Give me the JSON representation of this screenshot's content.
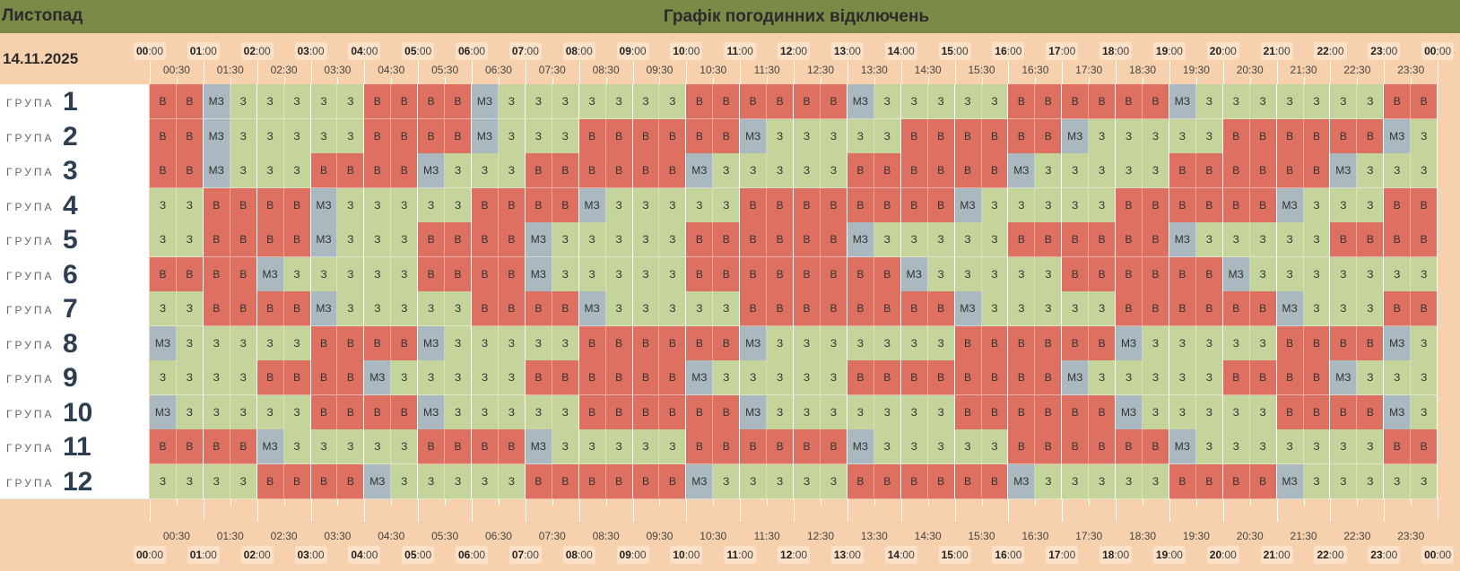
{
  "header": {
    "month": "Листопад",
    "title": "Графік погодинних відключень"
  },
  "date": "14.11.2025",
  "hour_labels": [
    {
      "h": "00",
      "m": ":00"
    },
    {
      "h": "01",
      "m": ":00"
    },
    {
      "h": "02",
      "m": ":00"
    },
    {
      "h": "03",
      "m": ":00"
    },
    {
      "h": "04",
      "m": ":00"
    },
    {
      "h": "05",
      "m": ":00"
    },
    {
      "h": "06",
      "m": ":00"
    },
    {
      "h": "07",
      "m": ":00"
    },
    {
      "h": "08",
      "m": ":00"
    },
    {
      "h": "09",
      "m": ":00"
    },
    {
      "h": "10",
      "m": ":00"
    },
    {
      "h": "11",
      "m": ":00"
    },
    {
      "h": "12",
      "m": ":00"
    },
    {
      "h": "13",
      "m": ":00"
    },
    {
      "h": "14",
      "m": ":00"
    },
    {
      "h": "15",
      "m": ":00"
    },
    {
      "h": "16",
      "m": ":00"
    },
    {
      "h": "17",
      "m": ":00"
    },
    {
      "h": "18",
      "m": ":00"
    },
    {
      "h": "19",
      "m": ":00"
    },
    {
      "h": "20",
      "m": ":00"
    },
    {
      "h": "21",
      "m": ":00"
    },
    {
      "h": "22",
      "m": ":00"
    },
    {
      "h": "23",
      "m": ":00"
    },
    {
      "h": "00",
      "m": ":00"
    }
  ],
  "half_labels": [
    "00:30",
    "01:30",
    "02:30",
    "03:30",
    "04:30",
    "05:30",
    "06:30",
    "07:30",
    "08:30",
    "09:30",
    "10:30",
    "11:30",
    "12:30",
    "13:30",
    "14:30",
    "15:30",
    "16:30",
    "17:30",
    "18:30",
    "19:30",
    "20:30",
    "21:30",
    "22:30",
    "23:30"
  ],
  "group_word": "ГРУПА",
  "status_text": {
    "B": "В",
    "Z": "З",
    "MZ": "МЗ"
  },
  "status_colors": {
    "B": "#dd7060",
    "Z": "#c5d49a",
    "MZ": "#aab8c0"
  },
  "groups": [
    {
      "number": "1",
      "slots": [
        "B",
        "B",
        "MZ",
        "Z",
        "Z",
        "Z",
        "Z",
        "Z",
        "B",
        "B",
        "B",
        "B",
        "MZ",
        "Z",
        "Z",
        "Z",
        "Z",
        "Z",
        "Z",
        "Z",
        "B",
        "B",
        "B",
        "B",
        "B",
        "B",
        "MZ",
        "Z",
        "Z",
        "Z",
        "Z",
        "Z",
        "B",
        "B",
        "B",
        "B",
        "B",
        "B",
        "MZ",
        "Z",
        "Z",
        "Z",
        "Z",
        "Z",
        "Z",
        "Z",
        "B",
        "B"
      ]
    },
    {
      "number": "2",
      "slots": [
        "B",
        "B",
        "MZ",
        "Z",
        "Z",
        "Z",
        "Z",
        "Z",
        "B",
        "B",
        "B",
        "B",
        "MZ",
        "Z",
        "Z",
        "Z",
        "B",
        "B",
        "B",
        "B",
        "B",
        "B",
        "MZ",
        "Z",
        "Z",
        "Z",
        "Z",
        "Z",
        "B",
        "B",
        "B",
        "B",
        "B",
        "B",
        "MZ",
        "Z",
        "Z",
        "Z",
        "Z",
        "Z",
        "B",
        "B",
        "B",
        "B",
        "B",
        "B",
        "MZ",
        "Z"
      ]
    },
    {
      "number": "3",
      "slots": [
        "B",
        "B",
        "MZ",
        "Z",
        "Z",
        "Z",
        "B",
        "B",
        "B",
        "B",
        "MZ",
        "Z",
        "Z",
        "Z",
        "B",
        "B",
        "B",
        "B",
        "B",
        "B",
        "MZ",
        "Z",
        "Z",
        "Z",
        "Z",
        "Z",
        "B",
        "B",
        "B",
        "B",
        "B",
        "B",
        "MZ",
        "Z",
        "Z",
        "Z",
        "Z",
        "Z",
        "B",
        "B",
        "B",
        "B",
        "B",
        "B",
        "MZ",
        "Z",
        "Z",
        "Z"
      ]
    },
    {
      "number": "4",
      "slots": [
        "Z",
        "Z",
        "B",
        "B",
        "B",
        "B",
        "MZ",
        "Z",
        "Z",
        "Z",
        "Z",
        "Z",
        "B",
        "B",
        "B",
        "B",
        "MZ",
        "Z",
        "Z",
        "Z",
        "Z",
        "Z",
        "B",
        "B",
        "B",
        "B",
        "B",
        "B",
        "B",
        "B",
        "MZ",
        "Z",
        "Z",
        "Z",
        "Z",
        "Z",
        "B",
        "B",
        "B",
        "B",
        "B",
        "B",
        "MZ",
        "Z",
        "Z",
        "Z",
        "B",
        "B"
      ]
    },
    {
      "number": "5",
      "slots": [
        "Z",
        "Z",
        "B",
        "B",
        "B",
        "B",
        "MZ",
        "Z",
        "Z",
        "Z",
        "B",
        "B",
        "B",
        "B",
        "MZ",
        "Z",
        "Z",
        "Z",
        "Z",
        "Z",
        "B",
        "B",
        "B",
        "B",
        "B",
        "B",
        "MZ",
        "Z",
        "Z",
        "Z",
        "Z",
        "Z",
        "B",
        "B",
        "B",
        "B",
        "B",
        "B",
        "MZ",
        "Z",
        "Z",
        "Z",
        "Z",
        "Z",
        "B",
        "B",
        "B",
        "B"
      ]
    },
    {
      "number": "6",
      "slots": [
        "B",
        "B",
        "B",
        "B",
        "MZ",
        "Z",
        "Z",
        "Z",
        "Z",
        "Z",
        "B",
        "B",
        "B",
        "B",
        "MZ",
        "Z",
        "Z",
        "Z",
        "Z",
        "Z",
        "B",
        "B",
        "B",
        "B",
        "B",
        "B",
        "B",
        "B",
        "MZ",
        "Z",
        "Z",
        "Z",
        "Z",
        "Z",
        "B",
        "B",
        "B",
        "B",
        "B",
        "B",
        "MZ",
        "Z",
        "Z",
        "Z",
        "Z",
        "Z",
        "Z",
        "Z"
      ]
    },
    {
      "number": "7",
      "slots": [
        "Z",
        "Z",
        "B",
        "B",
        "B",
        "B",
        "MZ",
        "Z",
        "Z",
        "Z",
        "Z",
        "Z",
        "B",
        "B",
        "B",
        "B",
        "MZ",
        "Z",
        "Z",
        "Z",
        "Z",
        "Z",
        "B",
        "B",
        "B",
        "B",
        "B",
        "B",
        "B",
        "B",
        "MZ",
        "Z",
        "Z",
        "Z",
        "Z",
        "Z",
        "B",
        "B",
        "B",
        "B",
        "B",
        "B",
        "MZ",
        "Z",
        "Z",
        "Z",
        "B",
        "B"
      ]
    },
    {
      "number": "8",
      "slots": [
        "MZ",
        "Z",
        "Z",
        "Z",
        "Z",
        "Z",
        "B",
        "B",
        "B",
        "B",
        "MZ",
        "Z",
        "Z",
        "Z",
        "Z",
        "Z",
        "B",
        "B",
        "B",
        "B",
        "B",
        "B",
        "MZ",
        "Z",
        "Z",
        "Z",
        "Z",
        "Z",
        "Z",
        "Z",
        "B",
        "B",
        "B",
        "B",
        "B",
        "B",
        "MZ",
        "Z",
        "Z",
        "Z",
        "Z",
        "Z",
        "B",
        "B",
        "B",
        "B",
        "MZ",
        "Z"
      ]
    },
    {
      "number": "9",
      "slots": [
        "Z",
        "Z",
        "Z",
        "Z",
        "B",
        "B",
        "B",
        "B",
        "MZ",
        "Z",
        "Z",
        "Z",
        "Z",
        "Z",
        "B",
        "B",
        "B",
        "B",
        "B",
        "B",
        "MZ",
        "Z",
        "Z",
        "Z",
        "Z",
        "Z",
        "B",
        "B",
        "B",
        "B",
        "B",
        "B",
        "B",
        "B",
        "MZ",
        "Z",
        "Z",
        "Z",
        "Z",
        "Z",
        "B",
        "B",
        "B",
        "B",
        "MZ",
        "Z",
        "Z",
        "Z"
      ]
    },
    {
      "number": "10",
      "slots": [
        "MZ",
        "Z",
        "Z",
        "Z",
        "Z",
        "Z",
        "B",
        "B",
        "B",
        "B",
        "MZ",
        "Z",
        "Z",
        "Z",
        "Z",
        "Z",
        "B",
        "B",
        "B",
        "B",
        "B",
        "B",
        "MZ",
        "Z",
        "Z",
        "Z",
        "Z",
        "Z",
        "Z",
        "Z",
        "B",
        "B",
        "B",
        "B",
        "B",
        "B",
        "MZ",
        "Z",
        "Z",
        "Z",
        "Z",
        "Z",
        "B",
        "B",
        "B",
        "B",
        "MZ",
        "Z"
      ]
    },
    {
      "number": "11",
      "slots": [
        "B",
        "B",
        "B",
        "B",
        "MZ",
        "Z",
        "Z",
        "Z",
        "Z",
        "Z",
        "B",
        "B",
        "B",
        "B",
        "MZ",
        "Z",
        "Z",
        "Z",
        "Z",
        "Z",
        "B",
        "B",
        "B",
        "B",
        "B",
        "B",
        "MZ",
        "Z",
        "Z",
        "Z",
        "Z",
        "Z",
        "B",
        "B",
        "B",
        "B",
        "B",
        "B",
        "MZ",
        "Z",
        "Z",
        "Z",
        "Z",
        "Z",
        "Z",
        "Z",
        "B",
        "B"
      ]
    },
    {
      "number": "12",
      "slots": [
        "Z",
        "Z",
        "Z",
        "Z",
        "B",
        "B",
        "B",
        "B",
        "MZ",
        "Z",
        "Z",
        "Z",
        "Z",
        "Z",
        "B",
        "B",
        "B",
        "B",
        "B",
        "B",
        "MZ",
        "Z",
        "Z",
        "Z",
        "Z",
        "Z",
        "B",
        "B",
        "B",
        "B",
        "B",
        "B",
        "MZ",
        "Z",
        "Z",
        "Z",
        "Z",
        "Z",
        "B",
        "B",
        "B",
        "B",
        "MZ",
        "Z",
        "Z",
        "Z",
        "Z",
        "Z"
      ]
    }
  ]
}
